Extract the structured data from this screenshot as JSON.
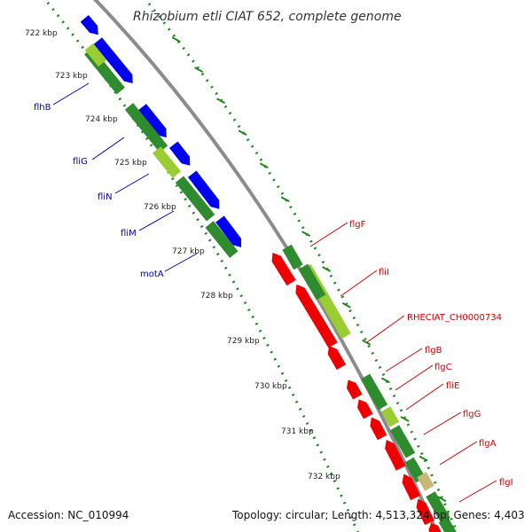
{
  "title": "Rhizobium etli CIAT 652, complete genome",
  "footer": {
    "accession": "Accession: NC_010994",
    "summary": "Topology: circular; Length: 4,513,324 bp; Genes: 4,403"
  },
  "colors": {
    "backbone": "#8c8c8c",
    "tick": "#1e8a1e",
    "forward_cds": "#0000ee",
    "reverse_cds": "#ee0000",
    "gene_dark": "#2e8b2e",
    "gene_light": "#9acd32",
    "gene_tan": "#c8b878",
    "left_label": "#0000aa",
    "right_label": "#cc0000"
  },
  "ruler": {
    "labels": [
      "722 kbp",
      "723 kbp",
      "724 kbp",
      "725 kbp",
      "726 kbp",
      "727 kbp",
      "728 kbp",
      "729 kbp",
      "730 kbp",
      "731 kbp",
      "732 kbp"
    ]
  },
  "left_labels": [
    "flhB",
    "fliG",
    "fliN",
    "fliM",
    "motA"
  ],
  "right_labels": [
    "flgF",
    "fliI",
    "RHECIAT_CH0000734",
    "flgB",
    "flgC",
    "fliE",
    "flgG",
    "flgA",
    "flgI"
  ]
}
